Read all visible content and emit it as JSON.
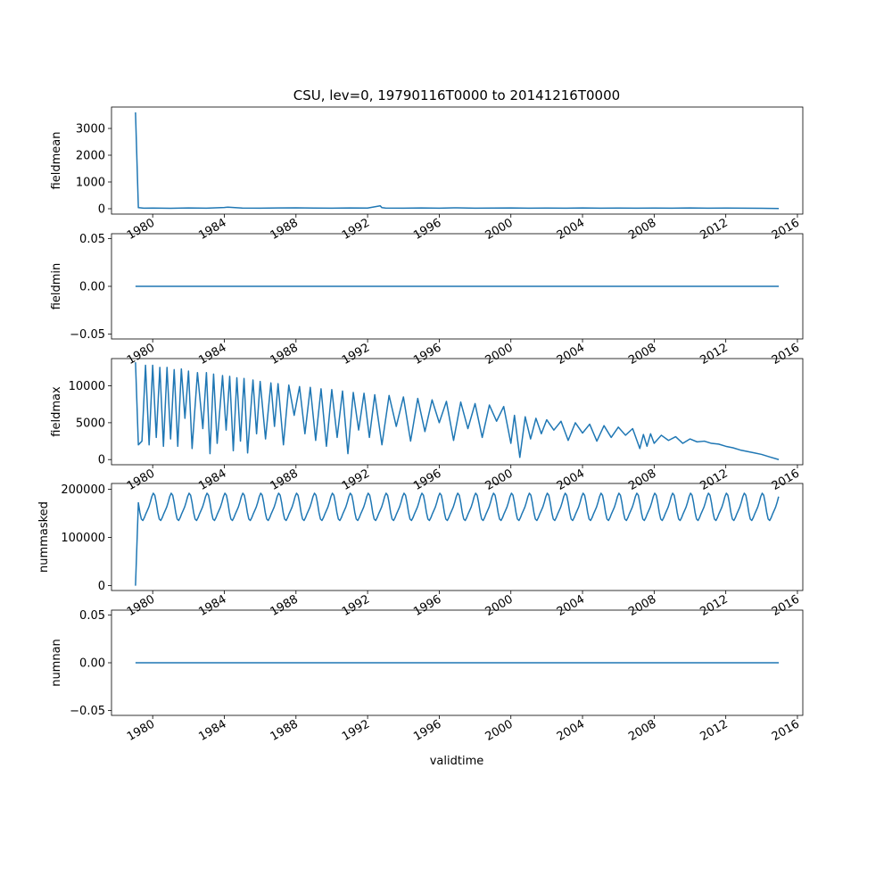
{
  "title": "CSU, lev=0, 19790116T0000 to 20141216T0000",
  "xlabel": "validtime",
  "x_tick_labels": [
    "1980",
    "1984",
    "1988",
    "1992",
    "1996",
    "2000",
    "2004",
    "2008",
    "2012",
    "2016"
  ],
  "x_tick_years": [
    1980,
    1984,
    1988,
    1992,
    1996,
    2000,
    2004,
    2008,
    2012,
    2016
  ],
  "line_color": "#1f77b4",
  "chart_data": [
    {
      "type": "line",
      "ylabel": "fieldmean",
      "xlim": [
        1977.7,
        2016.3
      ],
      "ylim": [
        -200,
        3800
      ],
      "yticks": [
        0,
        1000,
        2000,
        3000
      ],
      "ytick_labels": [
        "0",
        "1000",
        "2000",
        "3000"
      ],
      "x": [
        1979.04,
        1979.2,
        1979.5,
        1980,
        1981,
        1982,
        1983,
        1984,
        1984.2,
        1985,
        1986,
        1987,
        1988,
        1989,
        1990,
        1991,
        1992,
        1992.7,
        1992.8,
        1993,
        1994,
        1995,
        1996,
        1997,
        1998,
        1999,
        2000,
        2001,
        2002,
        2003,
        2004,
        2005,
        2006,
        2007,
        2008,
        2009,
        2010,
        2011,
        2012,
        2013,
        2014,
        2014.96
      ],
      "y": [
        3600,
        40,
        20,
        25,
        15,
        30,
        20,
        45,
        60,
        25,
        20,
        30,
        35,
        25,
        20,
        30,
        25,
        110,
        40,
        25,
        20,
        30,
        20,
        35,
        20,
        25,
        30,
        20,
        25,
        20,
        30,
        20,
        25,
        20,
        25,
        20,
        30,
        20,
        25,
        20,
        15,
        10
      ]
    },
    {
      "type": "line",
      "ylabel": "fieldmin",
      "xlim": [
        1977.7,
        2016.3
      ],
      "ylim": [
        -0.055,
        0.055
      ],
      "yticks": [
        -0.05,
        0,
        0.05
      ],
      "ytick_labels": [
        "−0.05",
        "0.00",
        "0.05"
      ],
      "x": [
        1979.04,
        2014.96
      ],
      "y": [
        0,
        0
      ]
    },
    {
      "type": "line",
      "ylabel": "fieldmax",
      "xlim": [
        1977.7,
        2016.3
      ],
      "ylim": [
        -700,
        13700
      ],
      "yticks": [
        0,
        5000,
        10000
      ],
      "ytick_labels": [
        "0",
        "5000",
        "10000"
      ],
      "x": [
        1979.04,
        1979.2,
        1979.4,
        1979.6,
        1979.8,
        1980.0,
        1980.2,
        1980.4,
        1980.6,
        1980.8,
        1981.0,
        1981.2,
        1981.4,
        1981.6,
        1981.8,
        1982.0,
        1982.2,
        1982.5,
        1982.8,
        1983.0,
        1983.2,
        1983.4,
        1983.6,
        1983.9,
        1984.1,
        1984.3,
        1984.5,
        1984.7,
        1984.9,
        1985.1,
        1985.3,
        1985.6,
        1985.8,
        1986.0,
        1986.3,
        1986.6,
        1986.8,
        1987.0,
        1987.3,
        1987.6,
        1987.9,
        1988.2,
        1988.5,
        1988.8,
        1989.1,
        1989.4,
        1989.7,
        1990.0,
        1990.3,
        1990.6,
        1990.9,
        1991.2,
        1991.5,
        1991.8,
        1992.1,
        1992.4,
        1992.8,
        1993.2,
        1993.6,
        1994.0,
        1994.4,
        1994.8,
        1995.2,
        1995.6,
        1996.0,
        1996.4,
        1996.8,
        1997.2,
        1997.6,
        1998.0,
        1998.4,
        1998.8,
        1999.2,
        1999.6,
        2000.0,
        2000.2,
        2000.5,
        2000.8,
        2001.1,
        2001.4,
        2001.7,
        2002.0,
        2002.4,
        2002.8,
        2003.2,
        2003.6,
        2004.0,
        2004.4,
        2004.8,
        2005.2,
        2005.6,
        2006.0,
        2006.4,
        2006.8,
        2007.2,
        2007.4,
        2007.6,
        2007.8,
        2008.0,
        2008.4,
        2008.8,
        2009.2,
        2009.6,
        2010.0,
        2010.4,
        2010.8,
        2011.2,
        2011.6,
        2012.0,
        2012.4,
        2012.8,
        2013.2,
        2013.6,
        2014.0,
        2014.4,
        2014.96
      ],
      "y": [
        13200,
        2000,
        2500,
        12800,
        2000,
        12800,
        3000,
        12500,
        1800,
        12500,
        2800,
        12200,
        1800,
        12300,
        5600,
        12000,
        1500,
        11800,
        4200,
        11800,
        800,
        11600,
        2200,
        11400,
        4000,
        11300,
        1200,
        11100,
        2500,
        11000,
        900,
        10800,
        3500,
        10600,
        2800,
        10400,
        4500,
        10300,
        2000,
        10100,
        6000,
        9900,
        3500,
        9800,
        2600,
        9600,
        1800,
        9500,
        3000,
        9300,
        800,
        9100,
        4000,
        9000,
        3000,
        8800,
        2000,
        8700,
        4500,
        8500,
        2500,
        8300,
        3800,
        8100,
        5000,
        7900,
        2600,
        7800,
        4200,
        7600,
        3000,
        7400,
        5200,
        7200,
        2200,
        6000,
        300,
        5800,
        2800,
        5600,
        3500,
        5400,
        4000,
        5200,
        2600,
        5000,
        3600,
        4800,
        2500,
        4600,
        3000,
        4400,
        3300,
        4200,
        1500,
        3400,
        1800,
        3500,
        2200,
        3300,
        2600,
        3100,
        2200,
        2800,
        2400,
        2500,
        2200,
        2100,
        1800,
        1600,
        1300,
        1100,
        900,
        700,
        400,
        0
      ]
    },
    {
      "type": "line",
      "ylabel": "nummasked",
      "xlim": [
        1977.7,
        2016.3
      ],
      "ylim": [
        -10000,
        212000
      ],
      "yticks": [
        0,
        100000,
        200000
      ],
      "ytick_labels": [
        "0",
        "100000",
        "200000"
      ],
      "seasonal": {
        "start": 1979.2,
        "end": 2014.96,
        "mean": 162000,
        "amplitude": 26000,
        "peak_phase": 0.0
      },
      "first_point": {
        "x": 1979.04,
        "y": 0
      }
    },
    {
      "type": "line",
      "ylabel": "numnan",
      "xlim": [
        1977.7,
        2016.3
      ],
      "ylim": [
        -0.055,
        0.055
      ],
      "yticks": [
        -0.05,
        0,
        0.05
      ],
      "ytick_labels": [
        "−0.05",
        "0.00",
        "0.05"
      ],
      "x": [
        1979.04,
        2014.96
      ],
      "y": [
        0,
        0
      ]
    }
  ]
}
